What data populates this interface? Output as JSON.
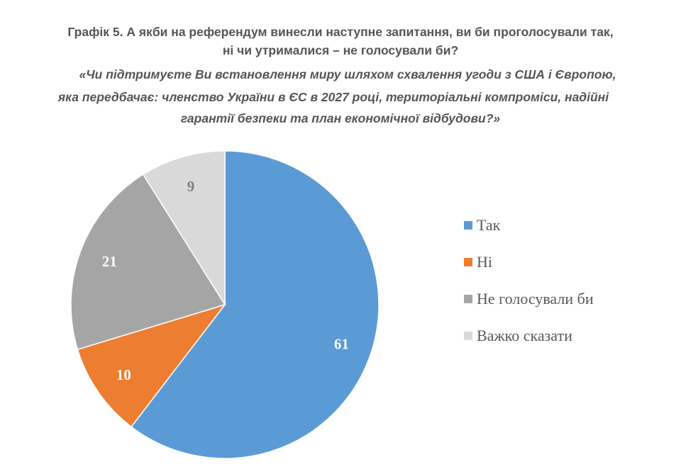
{
  "chart_data": {
    "type": "pie",
    "title": "Графік 5. А якби на референдум винесли наступне запитання, ви би проголосували так, ні чи утрималися – не голосували би?",
    "title_line1": "Графік 5. А якби на референдум винесли наступне запитання, ви би проголосували так,",
    "title_line2": "ні чи утрималися – не голосували би?",
    "subtitle_line1": "«Чи підтримуєте Ви встановлення миру шляхом схвалення угоди з США і Європою,",
    "subtitle_line2": "яка передбачає: членство України в ЄС в 2027 році, територіальні компроміси, надійні",
    "subtitle_line3": "гарантії безпеки та план економічної відбудови?»",
    "categories": [
      "Так",
      "Ні",
      "Не голосували би",
      "Важко сказати"
    ],
    "values": [
      61,
      10,
      21,
      9
    ],
    "colors": [
      "#5B9BD5",
      "#ED7D31",
      "#A5A5A5",
      "#D9D9D9"
    ],
    "label_colors": [
      "#ffffff",
      "#ffffff",
      "#ffffff",
      "#7f7f7f"
    ],
    "legend_position": "right"
  }
}
